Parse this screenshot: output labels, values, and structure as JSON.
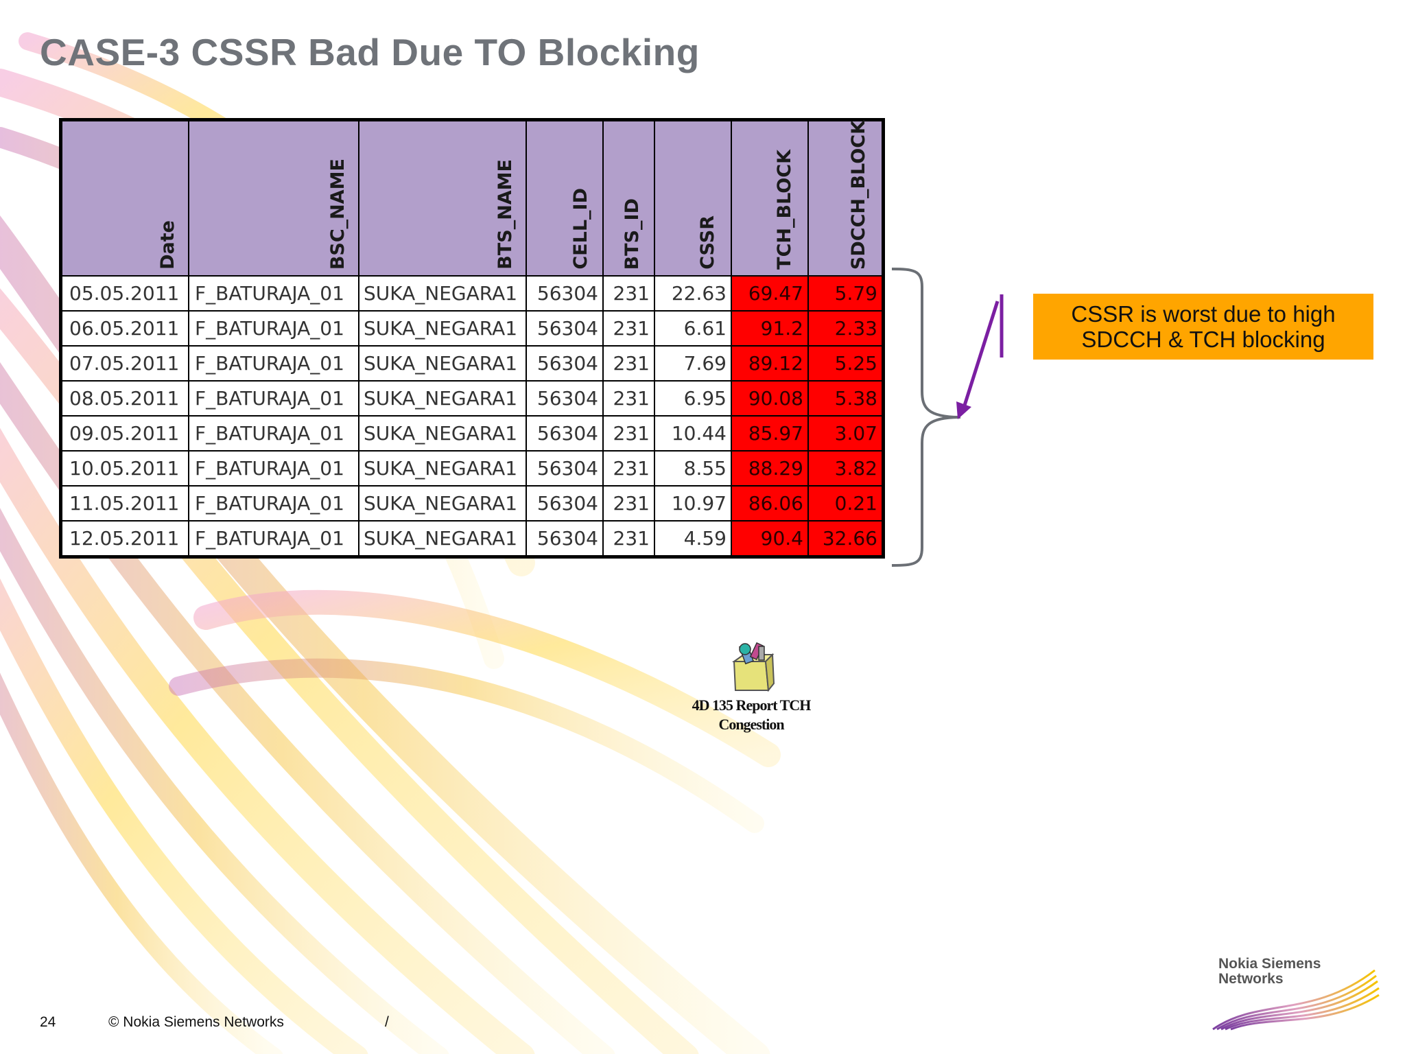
{
  "slide": {
    "title": "CASE-3 CSSR Bad Due TO Blocking",
    "page_number": "24",
    "copyright": "© Nokia Siemens Networks",
    "footer_separator": "/",
    "brand": "Nokia Siemens Networks",
    "brand_line1": "Nokia Siemens",
    "brand_line2": "Networks"
  },
  "table": {
    "headers": [
      "Date",
      "BSC_NAME",
      "BTS_NAME",
      "CELL_ID",
      "BTS_ID",
      "CSSR",
      "TCH_BLOCK",
      "SDCCH_BLOCK"
    ],
    "rows": [
      [
        "05.05.2011",
        "F_BATURAJA_01",
        "SUKA_NEGARA1",
        "56304",
        "231",
        "22.63",
        "69.47",
        "5.79"
      ],
      [
        "06.05.2011",
        "F_BATURAJA_01",
        "SUKA_NEGARA1",
        "56304",
        "231",
        "6.61",
        "91.2",
        "2.33"
      ],
      [
        "07.05.2011",
        "F_BATURAJA_01",
        "SUKA_NEGARA1",
        "56304",
        "231",
        "7.69",
        "89.12",
        "5.25"
      ],
      [
        "08.05.2011",
        "F_BATURAJA_01",
        "SUKA_NEGARA1",
        "56304",
        "231",
        "6.95",
        "90.08",
        "5.38"
      ],
      [
        "09.05.2011",
        "F_BATURAJA_01",
        "SUKA_NEGARA1",
        "56304",
        "231",
        "10.44",
        "85.97",
        "3.07"
      ],
      [
        "10.05.2011",
        "F_BATURAJA_01",
        "SUKA_NEGARA1",
        "56304",
        "231",
        "8.55",
        "88.29",
        "3.82"
      ],
      [
        "11.05.2011",
        "F_BATURAJA_01",
        "SUKA_NEGARA1",
        "56304",
        "231",
        "10.97",
        "86.06",
        "0.21"
      ],
      [
        "12.05.2011",
        "F_BATURAJA_01",
        "SUKA_NEGARA1",
        "56304",
        "231",
        "4.59",
        "90.4",
        "32.66"
      ]
    ],
    "header_color": "#b29fcb",
    "highlight_color": "#ff0000"
  },
  "callout": {
    "line1": "CSSR is worst due to high",
    "line2": "SDCCH & TCH blocking",
    "color": "#ffa500",
    "arrow_color": "#7b1fa2"
  },
  "attachment": {
    "label_line1": "4D 135 Report TCH",
    "label_line2": "Congestion",
    "icon": "package-icon"
  }
}
